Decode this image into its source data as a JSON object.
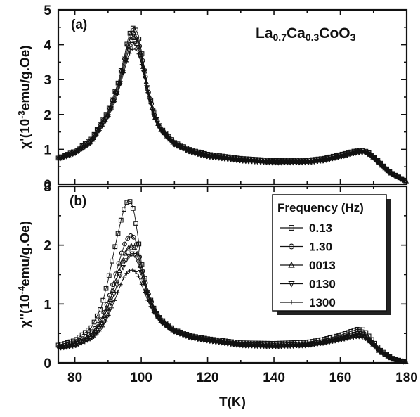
{
  "chart_data": [
    {
      "type": "scatter",
      "panel_label": "(a)",
      "compound": {
        "main": "La",
        "s1": "0.7",
        "mid": "Ca",
        "s2": "0.3",
        "tail": "CoO",
        "s3": "3"
      },
      "ylabel": {
        "pre": "χ'(10",
        "exp": "-3",
        "post": "emu/g.Oe)"
      },
      "xlim": [
        75,
        180
      ],
      "ylim": [
        0,
        5
      ],
      "y_ticks": [
        "0",
        "1",
        "2",
        "3",
        "4",
        "5"
      ],
      "series": [
        {
          "marker": "square",
          "x": [
            75,
            80,
            85,
            90,
            93,
            95,
            96,
            97,
            98,
            99,
            100,
            101,
            102,
            104,
            106,
            110,
            115,
            120,
            130,
            140,
            150,
            155,
            160,
            163,
            165,
            167,
            169,
            172,
            175,
            180
          ],
          "y": [
            0.75,
            0.95,
            1.3,
            2.1,
            2.9,
            3.7,
            4.15,
            4.45,
            4.5,
            4.3,
            3.85,
            3.3,
            2.75,
            2.0,
            1.6,
            1.2,
            0.98,
            0.86,
            0.74,
            0.68,
            0.69,
            0.74,
            0.85,
            0.92,
            0.97,
            0.98,
            0.88,
            0.62,
            0.35,
            0.08
          ]
        },
        {
          "marker": "circle",
          "x": [
            75,
            80,
            85,
            90,
            93,
            95,
            96,
            97,
            98,
            99,
            100,
            101,
            102,
            104,
            106,
            110,
            115,
            120,
            130,
            140,
            150,
            155,
            160,
            163,
            165,
            167,
            169,
            172,
            175,
            180
          ],
          "y": [
            0.74,
            0.93,
            1.27,
            2.05,
            2.82,
            3.6,
            4.02,
            4.3,
            4.35,
            4.17,
            3.75,
            3.24,
            2.71,
            1.98,
            1.58,
            1.18,
            0.96,
            0.84,
            0.72,
            0.66,
            0.67,
            0.72,
            0.83,
            0.9,
            0.95,
            0.96,
            0.86,
            0.6,
            0.34,
            0.08
          ]
        },
        {
          "marker": "triangle-up",
          "x": [
            75,
            80,
            85,
            90,
            93,
            95,
            96,
            97,
            98,
            99,
            100,
            101,
            102,
            104,
            106,
            110,
            115,
            120,
            130,
            140,
            150,
            155,
            160,
            163,
            165,
            167,
            169,
            172,
            175,
            180
          ],
          "y": [
            0.73,
            0.91,
            1.24,
            2.0,
            2.75,
            3.5,
            3.9,
            4.15,
            4.2,
            4.05,
            3.66,
            3.18,
            2.67,
            1.95,
            1.56,
            1.16,
            0.94,
            0.82,
            0.7,
            0.64,
            0.65,
            0.7,
            0.81,
            0.88,
            0.93,
            0.95,
            0.85,
            0.59,
            0.33,
            0.08
          ]
        },
        {
          "marker": "triangle-down",
          "x": [
            75,
            80,
            85,
            90,
            93,
            95,
            96,
            97,
            98,
            99,
            100,
            101,
            102,
            104,
            106,
            110,
            115,
            120,
            130,
            140,
            150,
            155,
            160,
            163,
            165,
            167,
            169,
            172,
            175,
            180
          ],
          "y": [
            0.72,
            0.89,
            1.21,
            1.95,
            2.68,
            3.4,
            3.78,
            4.0,
            4.05,
            3.93,
            3.57,
            3.12,
            2.63,
            1.93,
            1.54,
            1.14,
            0.92,
            0.8,
            0.68,
            0.62,
            0.63,
            0.68,
            0.79,
            0.86,
            0.91,
            0.93,
            0.84,
            0.58,
            0.32,
            0.08
          ]
        },
        {
          "marker": "plus",
          "x": [
            75,
            80,
            85,
            90,
            93,
            95,
            96,
            97,
            98,
            99,
            100,
            101,
            102,
            104,
            106,
            110,
            115,
            120,
            130,
            140,
            150,
            155,
            160,
            163,
            165,
            167,
            169,
            172,
            175,
            180
          ],
          "y": [
            0.71,
            0.87,
            1.18,
            1.9,
            2.6,
            3.3,
            3.65,
            3.85,
            3.9,
            3.8,
            3.48,
            3.05,
            2.58,
            1.9,
            1.52,
            1.12,
            0.9,
            0.78,
            0.66,
            0.6,
            0.61,
            0.66,
            0.77,
            0.84,
            0.89,
            0.91,
            0.83,
            0.57,
            0.31,
            0.08
          ]
        }
      ]
    },
    {
      "type": "scatter",
      "panel_label": "(b)",
      "ylabel": {
        "pre": "χ''(10",
        "exp": "-4",
        "post": "emu/g.Oe)"
      },
      "xlabel": "T(K)",
      "xlim": [
        75,
        180
      ],
      "ylim": [
        0,
        3
      ],
      "x_ticks": [
        "80",
        "100",
        "120",
        "140",
        "160",
        "180"
      ],
      "y_ticks": [
        "0",
        "1",
        "2",
        "3"
      ],
      "legend": {
        "title": "Frequency (Hz)",
        "placement": "top-right",
        "entries": [
          "0.13",
          "1.30",
          "0013",
          "0130",
          "1300"
        ]
      },
      "series": [
        {
          "name": "0.13",
          "marker": "square",
          "x": [
            75,
            80,
            85,
            88,
            90,
            92,
            94,
            95,
            96,
            97,
            98,
            99,
            100,
            102,
            104,
            106,
            110,
            115,
            120,
            130,
            140,
            150,
            155,
            160,
            163,
            165,
            167,
            169,
            172,
            176,
            180
          ],
          "y": [
            0.3,
            0.38,
            0.6,
            0.95,
            1.4,
            1.95,
            2.45,
            2.65,
            2.76,
            2.73,
            2.52,
            2.15,
            1.72,
            1.2,
            0.9,
            0.74,
            0.56,
            0.46,
            0.41,
            0.34,
            0.33,
            0.35,
            0.4,
            0.47,
            0.53,
            0.57,
            0.56,
            0.43,
            0.22,
            0.07,
            0.01
          ]
        },
        {
          "name": "1.30",
          "marker": "circle",
          "x": [
            75,
            80,
            85,
            88,
            90,
            92,
            94,
            95,
            96,
            97,
            98,
            99,
            100,
            102,
            104,
            106,
            110,
            115,
            120,
            130,
            140,
            150,
            155,
            160,
            163,
            165,
            167,
            169,
            172,
            176,
            180
          ],
          "y": [
            0.27,
            0.33,
            0.5,
            0.75,
            1.05,
            1.45,
            1.85,
            2.02,
            2.12,
            2.17,
            2.12,
            1.95,
            1.65,
            1.2,
            0.9,
            0.73,
            0.55,
            0.45,
            0.4,
            0.32,
            0.3,
            0.32,
            0.36,
            0.42,
            0.47,
            0.5,
            0.49,
            0.38,
            0.2,
            0.06,
            0.01
          ]
        },
        {
          "name": "0013",
          "marker": "triangle-up",
          "x": [
            75,
            80,
            85,
            88,
            90,
            92,
            94,
            95,
            96,
            97,
            98,
            99,
            100,
            102,
            104,
            106,
            110,
            115,
            120,
            130,
            140,
            150,
            155,
            160,
            163,
            165,
            167,
            169,
            172,
            176,
            180
          ],
          "y": [
            0.26,
            0.31,
            0.46,
            0.68,
            0.95,
            1.3,
            1.68,
            1.84,
            1.94,
            1.99,
            1.96,
            1.82,
            1.58,
            1.16,
            0.88,
            0.72,
            0.54,
            0.44,
            0.39,
            0.31,
            0.29,
            0.31,
            0.35,
            0.41,
            0.45,
            0.48,
            0.47,
            0.37,
            0.19,
            0.06,
            0.01
          ]
        },
        {
          "name": "0130",
          "marker": "triangle-down",
          "x": [
            75,
            80,
            85,
            88,
            90,
            92,
            94,
            95,
            96,
            97,
            98,
            99,
            100,
            102,
            104,
            106,
            110,
            115,
            120,
            130,
            140,
            150,
            155,
            160,
            163,
            165,
            167,
            169,
            172,
            176,
            180
          ],
          "y": [
            0.25,
            0.3,
            0.43,
            0.63,
            0.87,
            1.2,
            1.55,
            1.7,
            1.8,
            1.86,
            1.84,
            1.73,
            1.52,
            1.13,
            0.86,
            0.7,
            0.53,
            0.43,
            0.38,
            0.3,
            0.28,
            0.3,
            0.34,
            0.4,
            0.44,
            0.46,
            0.45,
            0.36,
            0.19,
            0.06,
            0.01
          ]
        },
        {
          "name": "1300",
          "marker": "plus",
          "x": [
            75,
            80,
            85,
            88,
            90,
            92,
            94,
            95,
            96,
            97,
            98,
            99,
            100,
            102,
            104,
            106,
            110,
            115,
            120,
            130,
            140,
            150,
            155,
            160,
            163,
            165,
            167,
            169,
            172,
            176,
            180
          ],
          "y": [
            0.24,
            0.28,
            0.4,
            0.57,
            0.78,
            1.06,
            1.36,
            1.48,
            1.55,
            1.58,
            1.57,
            1.5,
            1.35,
            1.05,
            0.82,
            0.68,
            0.52,
            0.42,
            0.37,
            0.29,
            0.27,
            0.29,
            0.33,
            0.38,
            0.42,
            0.44,
            0.43,
            0.35,
            0.18,
            0.06,
            0.01
          ]
        }
      ]
    }
  ]
}
